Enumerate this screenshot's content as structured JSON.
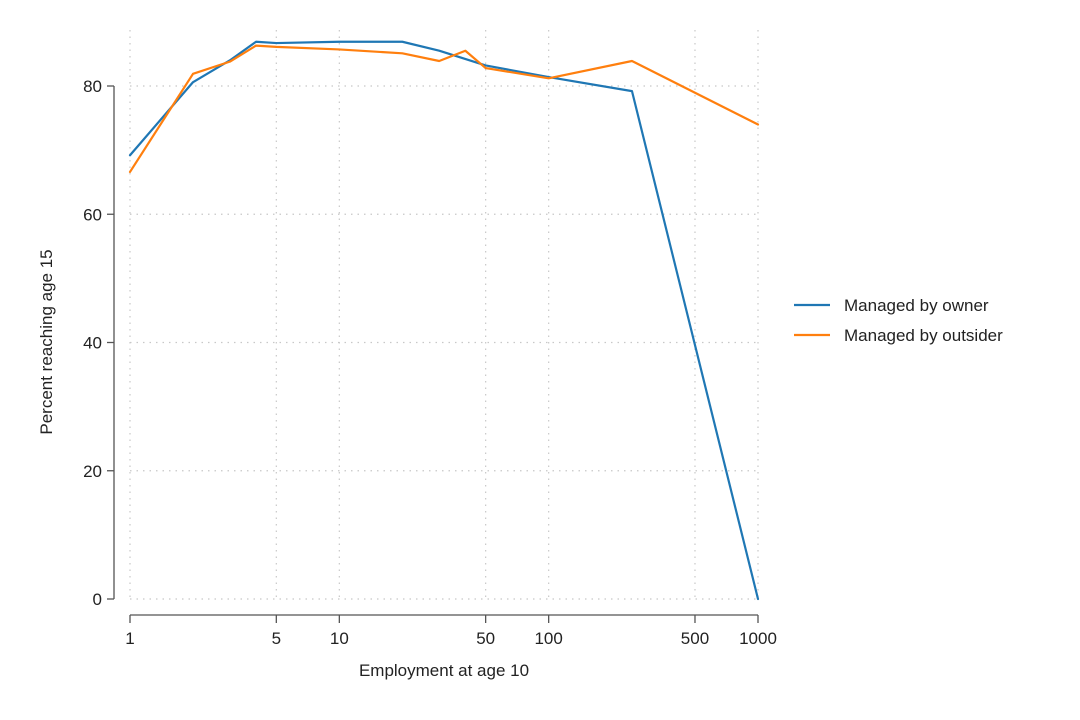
{
  "chart_data": {
    "type": "line",
    "title": "",
    "xlabel": "Employment at age 10",
    "ylabel": "Percent reaching age 15",
    "x_scale": "log",
    "xlim": [
      1,
      1000
    ],
    "ylim": [
      0,
      80
    ],
    "x_ticks": [
      1,
      5,
      10,
      50,
      100,
      500,
      1000
    ],
    "x_tick_labels": [
      "1",
      "5",
      "10",
      "50",
      "100",
      "500",
      "1000"
    ],
    "y_ticks": [
      0,
      20,
      40,
      60,
      80
    ],
    "y_tick_labels": [
      "0",
      "20",
      "40",
      "60",
      "80"
    ],
    "grid": true,
    "legend_position": "right",
    "series": [
      {
        "name": "Managed by owner",
        "color": "#1f77b4",
        "x": [
          1,
          2,
          3,
          4,
          5,
          10,
          20,
          30,
          50,
          100,
          250,
          1000
        ],
        "y": [
          69.2,
          80.6,
          84,
          86.9,
          86.7,
          86.9,
          86.9,
          85.5,
          83.2,
          81.4,
          79.2,
          0
        ]
      },
      {
        "name": "Managed by outsider",
        "color": "#ff7f0e",
        "x": [
          1,
          2,
          3,
          4,
          5,
          10,
          20,
          30,
          40,
          50,
          100,
          250,
          1000
        ],
        "y": [
          66.6,
          81.9,
          83.8,
          86.3,
          86.1,
          85.7,
          85.1,
          83.9,
          85.5,
          82.8,
          81.2,
          83.9,
          74
        ]
      }
    ]
  }
}
